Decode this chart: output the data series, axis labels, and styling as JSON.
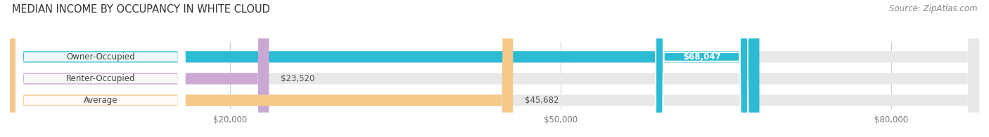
{
  "title": "MEDIAN INCOME BY OCCUPANCY IN WHITE CLOUD",
  "source": "Source: ZipAtlas.com",
  "categories": [
    "Owner-Occupied",
    "Renter-Occupied",
    "Average"
  ],
  "values": [
    68047,
    23520,
    45682
  ],
  "value_labels": [
    "$68,047",
    "$23,520",
    "$45,682"
  ],
  "bar_colors": [
    "#2bbcd4",
    "#c9a8d4",
    "#f5c98a"
  ],
  "bg_bar_color": "#e8e8e8",
  "xmax": 88000,
  "xticks": [
    20000,
    50000,
    80000
  ],
  "xtick_labels": [
    "$20,000",
    "$50,000",
    "$80,000"
  ],
  "title_fontsize": 10.5,
  "source_fontsize": 8.5,
  "label_fontsize": 8.5,
  "value_fontsize": 8.5,
  "bar_height": 0.52,
  "background_color": "#ffffff",
  "label_bg_color": "#ffffff",
  "value_text_color_owner": "#ffffff",
  "value_text_color_renter": "#555555",
  "value_text_color_avg": "#555555"
}
